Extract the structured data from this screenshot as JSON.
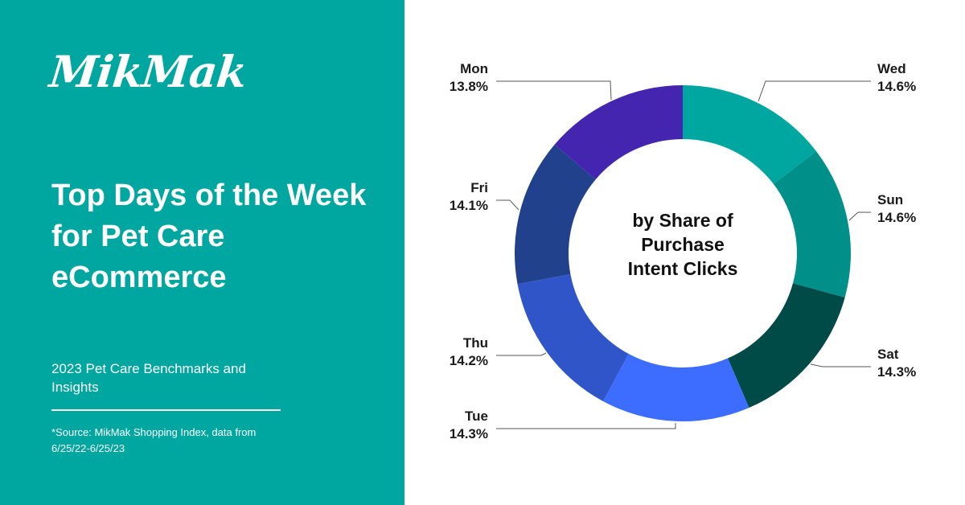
{
  "brand": {
    "logo_text": "MikMak"
  },
  "header": {
    "title": "Top Days of the Week for Pet Care eCommerce"
  },
  "subtitle": "2023 Pet Care Benchmarks and Insights",
  "source": "*Source: MikMak Shopping Index, data from 6/25/22-6/25/23",
  "colors": {
    "left_panel_bg": "#00a6a0",
    "text_on_panel": "#ffffff"
  },
  "chart_data": {
    "type": "pie",
    "variant": "donut",
    "center_label": [
      "by Share of",
      "Purchase",
      "Intent Clicks"
    ],
    "slices": [
      {
        "label": "Wed",
        "value": 14.6,
        "display": "14.6%",
        "color": "#00a6a0"
      },
      {
        "label": "Sun",
        "value": 14.6,
        "display": "14.6%",
        "color": "#008f89"
      },
      {
        "label": "Sat",
        "value": 14.3,
        "display": "14.3%",
        "color": "#004a48"
      },
      {
        "label": "Tue",
        "value": 14.3,
        "display": "14.3%",
        "color": "#3d6dff"
      },
      {
        "label": "Thu",
        "value": 14.2,
        "display": "14.2%",
        "color": "#2f55c9"
      },
      {
        "label": "Fri",
        "value": 14.1,
        "display": "14.1%",
        "color": "#22418c"
      },
      {
        "label": "Mon",
        "value": 13.8,
        "display": "13.8%",
        "color": "#4425b0"
      }
    ]
  }
}
